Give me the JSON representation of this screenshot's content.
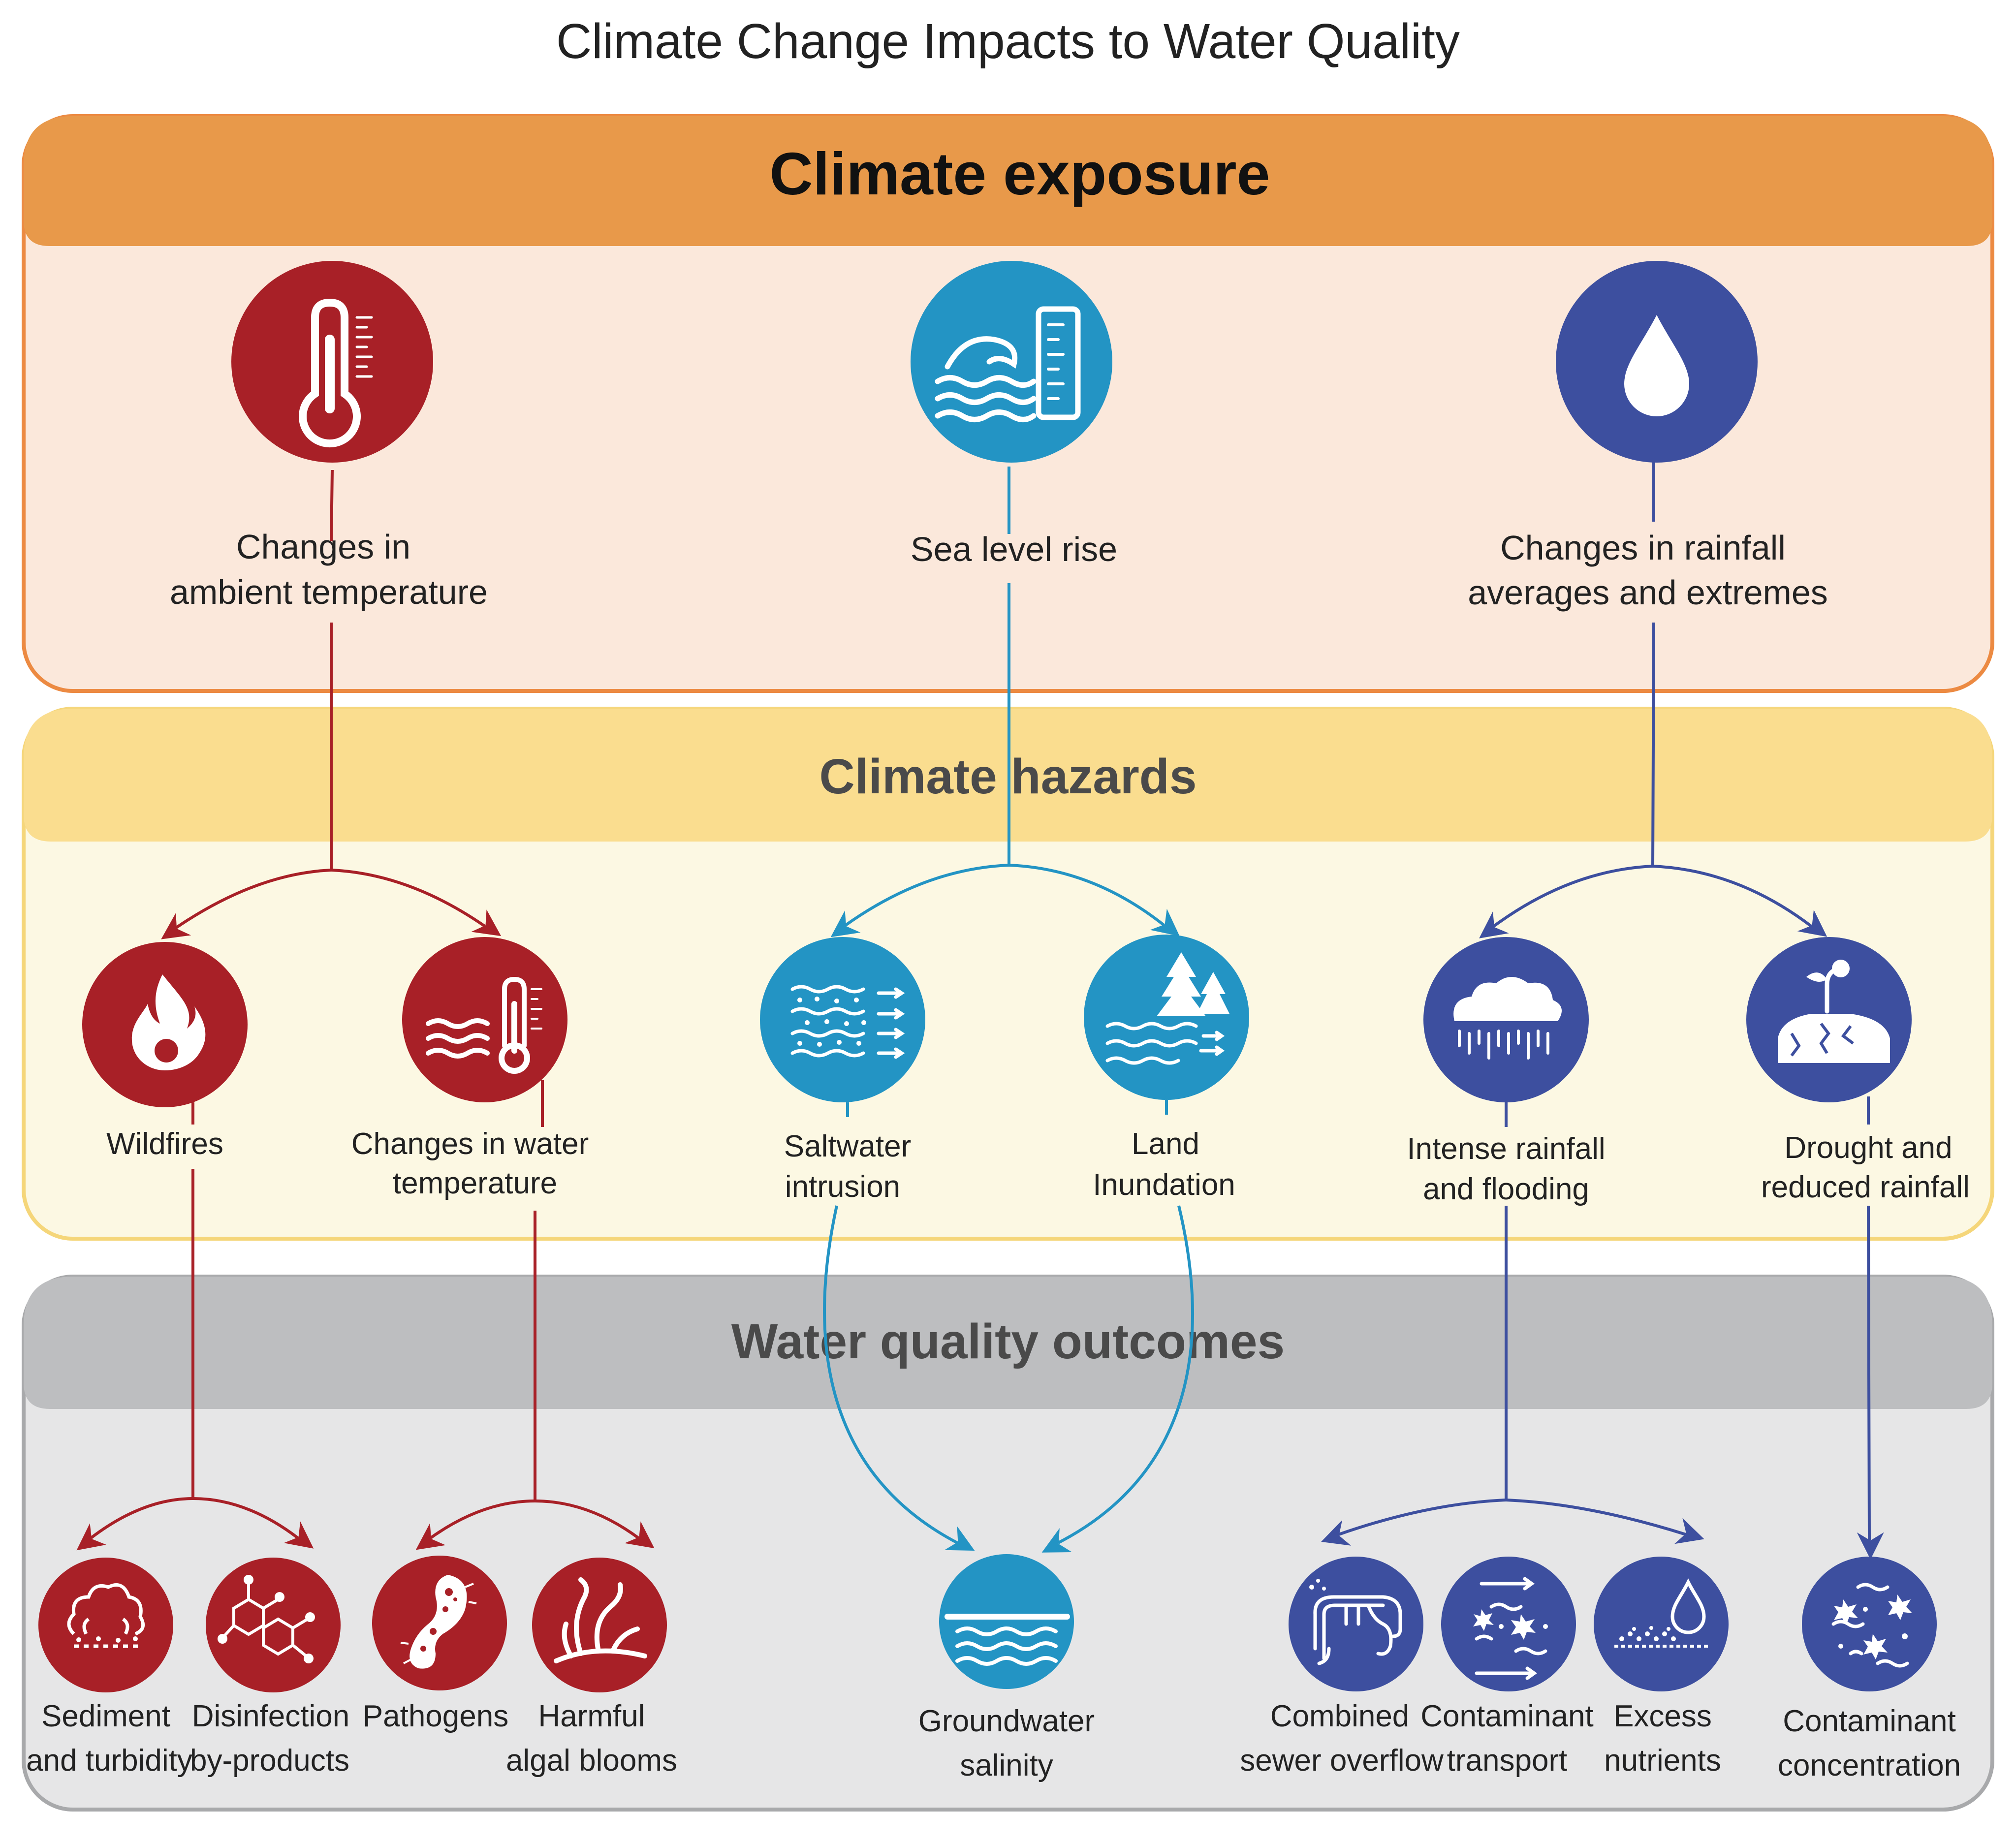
{
  "title": "Climate Change Impacts to Water Quality",
  "colors": {
    "exposure_header": "#E8994A",
    "exposure_body": "#FBE8DB",
    "exposure_border": "#EC8A42",
    "hazards_header": "#FADD8F",
    "hazards_body": "#FCF8E3",
    "hazards_border": "#F5D67A",
    "outcomes_header": "#BDBEC0",
    "outcomes_body": "#E6E6E7",
    "outcomes_border": "#A8A9AB",
    "red": "#A82027",
    "teal": "#2394C4",
    "blue": "#3D4F9F"
  },
  "sections": {
    "exposure": "Climate exposure",
    "hazards": "Climate hazards",
    "outcomes": "Water quality outcomes"
  },
  "exposure": {
    "temperature": {
      "line1": "Changes in",
      "line2": "ambient temperature",
      "icon": "thermometer-icon"
    },
    "sea_level": {
      "line1": "Sea level rise",
      "icon": "wave-gauge-icon"
    },
    "rainfall": {
      "line1": "Changes in rainfall",
      "line2": "averages and extremes",
      "icon": "water-drop-icon"
    }
  },
  "hazards": {
    "wildfires": {
      "line1": "Wildfires",
      "icon": "flame-icon"
    },
    "water_temp": {
      "line1": "Changes in water",
      "line2": "temperature",
      "icon": "water-thermometer-icon"
    },
    "saltwater": {
      "line1": "Saltwater",
      "line2": "intrusion",
      "icon": "saltwater-flow-icon"
    },
    "inundation": {
      "line1": "Land",
      "line2": "Inundation",
      "icon": "flooded-trees-icon"
    },
    "flooding": {
      "line1": "Intense rainfall",
      "line2": "and flooding",
      "icon": "rain-cloud-icon"
    },
    "drought": {
      "line1": "Drought and",
      "line2": "reduced rainfall",
      "icon": "cracked-soil-sprout-icon"
    }
  },
  "outcomes": {
    "sediment": {
      "line1": "Sediment",
      "line2": "and turbidity",
      "icon": "sediment-cloud-icon"
    },
    "disinfection": {
      "line1": "Disinfection",
      "line2": "by-products",
      "icon": "molecule-icon"
    },
    "pathogens": {
      "line1": "Pathogens",
      "icon": "microbe-icon"
    },
    "algal": {
      "line1": "Harmful",
      "line2": "algal blooms",
      "icon": "algae-icon"
    },
    "groundwater": {
      "line1": "Groundwater",
      "line2": "salinity",
      "icon": "groundwater-waves-icon"
    },
    "sewer": {
      "line1": "Combined",
      "line2": "sewer overflow",
      "icon": "sewer-pipe-icon"
    },
    "transport": {
      "line1": "Contaminant",
      "line2": "transport",
      "icon": "contaminant-arrows-icon"
    },
    "nutrients": {
      "line1": "Excess",
      "line2": "nutrients",
      "icon": "nutrient-drop-icon"
    },
    "concentration": {
      "line1": "Contaminant",
      "line2": "concentration",
      "icon": "contaminant-particles-icon"
    }
  }
}
